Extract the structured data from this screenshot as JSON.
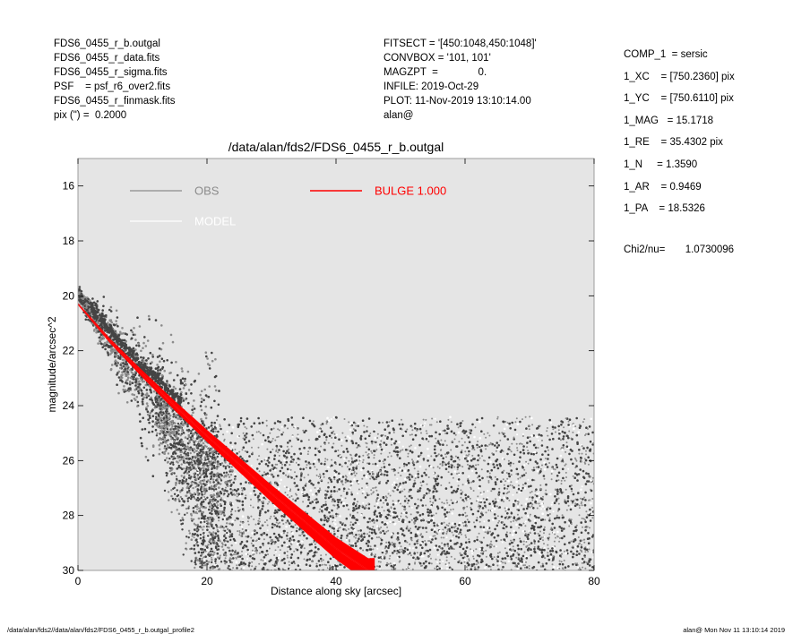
{
  "header": {
    "left": [
      "FDS6_0455_r_b.outgal",
      "FDS6_0455_r_data.fits",
      "FDS6_0455_r_sigma.fits",
      "PSF    = psf_r6_over2.fits",
      "FDS6_0455_r_finmask.fits",
      "pix (\") =  0.2000"
    ],
    "middle": [
      "FITSECT = '[450:1048,450:1048]'",
      "CONVBOX = '101, 101'",
      "MAGZPT  =              0.",
      "INFILE: 2019-Oct-29",
      "PLOT: 11-Nov-2019 13:10:14.00",
      "alan@"
    ],
    "right": [
      "COMP_1  = sersic",
      "1_XC    = [750.2360] pix",
      "1_YC    = [750.6110] pix",
      "1_MAG   = 15.1718",
      "1_RE    = 35.4302 pix",
      "1_N     = 1.3590",
      "1_AR    = 0.9469",
      "1_PA    = 18.5326"
    ],
    "chi2": "Chi2/nu=       1.0730096"
  },
  "footer": {
    "left": "/data/alan/fds2//data/alan/fds2/FDS6_0455_r_b.outgal_profile2",
    "right": "alan@  Mon Nov 11 13:10:14 2019"
  },
  "colors": {
    "plot_background": "#e5e5e5",
    "obs_light": "#8c8c8c",
    "obs_dark": "#444444",
    "model": "#ffffff",
    "bulge": "#ff0000"
  },
  "chart_data": {
    "type": "scatter",
    "title": "/data/alan/fds2/FDS6_0455_r_b.outgal",
    "xlabel": "Distance along sky [arcsec]",
    "ylabel": "magnitude/arcsec^2",
    "xlim": [
      0,
      80
    ],
    "ylim": [
      30,
      15
    ],
    "y_inverted": true,
    "xticks": [
      0,
      20,
      40,
      60,
      80
    ],
    "yticks": [
      16,
      18,
      20,
      22,
      24,
      26,
      28,
      30
    ],
    "legend_placement": "top-left",
    "legend": [
      {
        "label": "OBS",
        "color": "#8c8c8c"
      },
      {
        "label": "BULGE  1.000",
        "color": "#ff0000"
      },
      {
        "label": "MODEL",
        "color": "#ffffff"
      }
    ],
    "series": [
      {
        "name": "OBS",
        "kind": "scatter",
        "x": [
          0,
          1,
          2,
          3,
          4,
          5,
          6,
          8,
          10,
          12,
          14,
          16,
          18,
          20,
          22,
          24,
          26,
          30,
          40,
          50,
          60,
          70,
          80
        ],
        "y": [
          19.9,
          20.3,
          20.6,
          20.9,
          21.2,
          21.5,
          21.8,
          22.3,
          22.8,
          23.2,
          23.7,
          24.1,
          24.5,
          24.9,
          25.3,
          25.6,
          25.8,
          26.0,
          26.1,
          26.2,
          26.3,
          26.3,
          26.3
        ],
        "spread_faint_limit": 24.4
      },
      {
        "name": "MODEL",
        "kind": "line",
        "x": [
          0,
          5,
          10,
          15,
          20,
          25,
          30,
          35,
          40,
          45
        ],
        "y": [
          20.3,
          21.65,
          22.85,
          24.0,
          25.1,
          26.15,
          27.2,
          28.2,
          29.2,
          30.0
        ]
      },
      {
        "name": "BULGE",
        "kind": "line",
        "x": [
          0,
          5,
          10,
          15,
          20,
          25,
          30,
          35,
          40,
          45
        ],
        "y": [
          20.3,
          21.65,
          22.85,
          24.0,
          25.1,
          26.15,
          27.2,
          28.2,
          29.2,
          30.0
        ]
      }
    ]
  }
}
